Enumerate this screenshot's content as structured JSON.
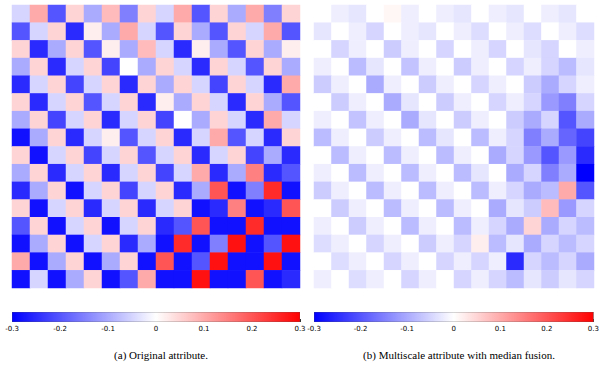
{
  "chart_data": [
    {
      "type": "heatmap",
      "title": "(a) Original attribute.",
      "tick_labels": false,
      "colorbar": {
        "range": [
          -0.3,
          0.3
        ],
        "ticks": [
          -0.3,
          -0.2,
          -0.1,
          0,
          0.1,
          0.2,
          0.3
        ]
      },
      "cells": [
        [
          -0.05,
          0.1,
          -0.2,
          0.05,
          -0.1,
          0.08,
          -0.15,
          0.05,
          -0.05,
          0.1,
          -0.2,
          0.05,
          -0.1,
          0.1,
          -0.15,
          0.05
        ],
        [
          -0.2,
          -0.05,
          0.05,
          -0.25,
          0.02,
          -0.1,
          0.1,
          -0.05,
          -0.2,
          0.05,
          -0.1,
          -0.2,
          0.05,
          -0.05,
          0.1,
          -0.2
        ],
        [
          0.05,
          -0.25,
          -0.1,
          0.05,
          -0.2,
          0.02,
          -0.1,
          0.08,
          -0.05,
          -0.25,
          0.02,
          -0.1,
          -0.2,
          0.05,
          -0.1,
          0.02
        ],
        [
          -0.1,
          0.05,
          -0.25,
          -0.05,
          0.05,
          -0.22,
          0.0,
          -0.1,
          0.05,
          -0.05,
          -0.25,
          0.05,
          -0.05,
          -0.2,
          0.05,
          -0.1
        ],
        [
          -0.25,
          -0.05,
          0.05,
          -0.22,
          -0.05,
          0.05,
          -0.25,
          0.05,
          -0.1,
          0.05,
          -0.05,
          -0.22,
          0.05,
          -0.05,
          -0.25,
          0.1
        ],
        [
          0.05,
          -0.25,
          -0.05,
          0.05,
          -0.2,
          -0.05,
          0.05,
          -0.25,
          0.02,
          -0.1,
          0.05,
          -0.05,
          -0.25,
          0.05,
          -0.1,
          -0.2
        ],
        [
          -0.1,
          0.05,
          -0.22,
          -0.05,
          0.05,
          -0.25,
          -0.05,
          0.05,
          -0.22,
          0.0,
          -0.1,
          0.05,
          -0.05,
          -0.25,
          0.1,
          -0.05
        ],
        [
          -0.28,
          -0.1,
          0.05,
          -0.25,
          -0.05,
          0.02,
          -0.2,
          -0.05,
          0.05,
          -0.25,
          -0.05,
          0.1,
          -0.2,
          -0.05,
          -0.25,
          0.05
        ],
        [
          0.05,
          -0.28,
          -0.05,
          0.05,
          -0.22,
          -0.05,
          0.05,
          -0.2,
          -0.05,
          0.05,
          -0.25,
          -0.05,
          0.05,
          -0.22,
          -0.1,
          -0.25
        ],
        [
          -0.1,
          0.05,
          -0.25,
          -0.05,
          0.05,
          -0.25,
          -0.05,
          0.05,
          -0.22,
          -0.05,
          0.1,
          -0.25,
          -0.1,
          0.15,
          -0.25,
          -0.2
        ],
        [
          -0.25,
          -0.1,
          0.05,
          -0.28,
          -0.05,
          0.05,
          -0.22,
          -0.05,
          0.05,
          -0.25,
          -0.1,
          0.2,
          -0.28,
          -0.15,
          0.25,
          -0.28
        ],
        [
          0.05,
          -0.28,
          -0.05,
          0.05,
          -0.25,
          -0.05,
          0.05,
          -0.25,
          -0.05,
          0.05,
          -0.28,
          -0.25,
          0.15,
          -0.28,
          -0.25,
          0.2
        ],
        [
          -0.2,
          0.05,
          -0.28,
          -0.05,
          0.05,
          -0.28,
          -0.05,
          0.05,
          -0.25,
          -0.2,
          0.2,
          -0.28,
          -0.28,
          0.25,
          -0.28,
          -0.28
        ],
        [
          -0.28,
          -0.1,
          0.05,
          -0.28,
          -0.05,
          0.05,
          -0.25,
          -0.1,
          -0.28,
          0.25,
          -0.28,
          -0.15,
          0.28,
          -0.28,
          -0.2,
          0.28
        ],
        [
          0.1,
          -0.28,
          -0.1,
          0.05,
          -0.28,
          -0.1,
          0.05,
          -0.28,
          0.2,
          -0.28,
          -0.2,
          0.28,
          -0.28,
          -0.28,
          0.28,
          -0.28
        ],
        [
          -0.28,
          -0.05,
          -0.28,
          -0.1,
          0.05,
          -0.28,
          -0.2,
          0.1,
          -0.28,
          -0.28,
          0.28,
          -0.28,
          -0.28,
          0.2,
          -0.28,
          -0.25
        ]
      ]
    },
    {
      "type": "heatmap",
      "title": "(b) Multiscale attribute with median fusion.",
      "tick_labels": false,
      "colorbar": {
        "range": [
          -0.3,
          0.3
        ],
        "ticks": [
          -0.3,
          -0.2,
          -0.1,
          0,
          0.1,
          0.2,
          0.3
        ]
      },
      "cells": [
        [
          0.0,
          -0.02,
          -0.03,
          0.0,
          0.01,
          -0.02,
          0.0,
          -0.02,
          -0.03,
          0.0,
          -0.02,
          -0.03,
          0.0,
          -0.02,
          -0.03,
          0.0
        ],
        [
          -0.03,
          0.0,
          -0.02,
          -0.05,
          0.0,
          -0.02,
          -0.03,
          0.0,
          -0.02,
          -0.04,
          0.0,
          -0.02,
          -0.04,
          0.0,
          -0.02,
          -0.04
        ],
        [
          0.0,
          -0.05,
          -0.02,
          0.0,
          -0.06,
          -0.02,
          0.0,
          -0.05,
          0.0,
          -0.02,
          -0.05,
          0.0,
          -0.03,
          -0.05,
          0.0,
          -0.02
        ],
        [
          -0.02,
          0.0,
          -0.08,
          -0.03,
          0.0,
          -0.07,
          -0.02,
          0.0,
          -0.06,
          -0.02,
          0.0,
          -0.05,
          -0.02,
          -0.05,
          -0.08,
          -0.03
        ],
        [
          -0.06,
          -0.02,
          0.0,
          -0.1,
          -0.02,
          0.0,
          -0.06,
          -0.02,
          0.0,
          -0.05,
          -0.02,
          0.0,
          -0.06,
          -0.1,
          -0.05,
          -0.02
        ],
        [
          0.0,
          -0.06,
          -0.02,
          0.0,
          -0.1,
          -0.03,
          0.0,
          -0.06,
          -0.02,
          0.0,
          -0.05,
          -0.02,
          -0.05,
          -0.12,
          -0.15,
          -0.05
        ],
        [
          -0.02,
          0.0,
          -0.07,
          -0.02,
          0.0,
          -0.1,
          -0.03,
          0.0,
          -0.06,
          -0.02,
          0.0,
          -0.06,
          -0.1,
          -0.05,
          -0.2,
          -0.1
        ],
        [
          -0.08,
          -0.02,
          0.0,
          -0.06,
          -0.02,
          0.0,
          -0.08,
          -0.03,
          0.0,
          -0.08,
          -0.02,
          -0.05,
          -0.15,
          -0.1,
          -0.18,
          -0.22
        ],
        [
          0.0,
          -0.08,
          -0.02,
          0.0,
          -0.08,
          -0.02,
          0.0,
          -0.08,
          -0.02,
          0.0,
          -0.1,
          -0.05,
          -0.12,
          -0.2,
          -0.12,
          -0.25
        ],
        [
          -0.02,
          0.0,
          -0.08,
          -0.02,
          0.0,
          -0.08,
          -0.02,
          0.0,
          -0.08,
          -0.03,
          0.0,
          -0.1,
          -0.05,
          -0.15,
          -0.1,
          -0.3
        ],
        [
          -0.06,
          -0.02,
          0.0,
          -0.08,
          -0.02,
          0.0,
          -0.08,
          -0.02,
          0.0,
          -0.08,
          -0.02,
          -0.05,
          -0.1,
          -0.08,
          0.1,
          -0.2
        ],
        [
          0.0,
          -0.06,
          -0.02,
          0.0,
          -0.08,
          -0.02,
          0.0,
          -0.08,
          -0.02,
          0.0,
          -0.1,
          -0.03,
          -0.06,
          0.08,
          -0.12,
          -0.05
        ],
        [
          -0.02,
          0.0,
          -0.06,
          -0.02,
          0.0,
          -0.08,
          -0.02,
          0.0,
          -0.08,
          -0.02,
          -0.05,
          -0.1,
          0.05,
          -0.1,
          -0.05,
          -0.08
        ],
        [
          -0.04,
          -0.02,
          0.0,
          -0.05,
          -0.02,
          0.0,
          -0.06,
          -0.02,
          -0.05,
          0.02,
          -0.08,
          -0.03,
          -0.1,
          -0.05,
          -0.08,
          -0.05
        ],
        [
          0.0,
          -0.04,
          -0.02,
          0.0,
          -0.05,
          -0.02,
          0.0,
          -0.05,
          -0.02,
          -0.05,
          -0.02,
          -0.25,
          -0.05,
          -0.08,
          -0.05,
          -0.1
        ],
        [
          -0.02,
          0.0,
          -0.04,
          -0.02,
          0.0,
          -0.05,
          -0.02,
          0.0,
          -0.05,
          -0.02,
          -0.05,
          -0.08,
          -0.03,
          -0.06,
          -0.03,
          -0.05
        ]
      ]
    }
  ]
}
